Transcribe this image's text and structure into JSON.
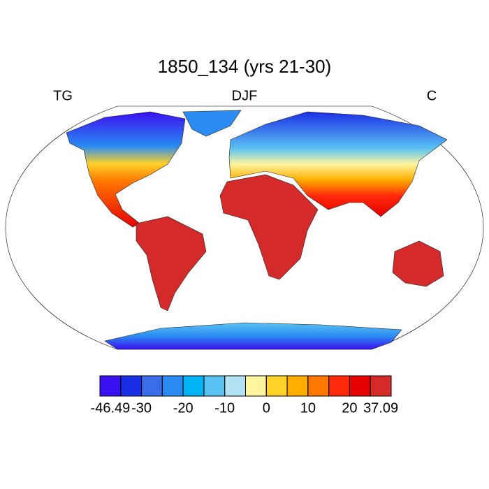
{
  "header": {
    "title": "1850_134 (yrs 21-30)",
    "left": "TG",
    "center": "DJF",
    "right": "C"
  },
  "colorbar": {
    "min": -46.49,
    "max": 37.09,
    "levels": [
      -35,
      -30,
      -25,
      -20,
      -15,
      -10,
      -5,
      0,
      5,
      10,
      15,
      20,
      25
    ],
    "colors": [
      "#3a0ff0",
      "#1a2ee6",
      "#3a6ee8",
      "#2a8cf2",
      "#00b4f5",
      "#5ac2f2",
      "#b4e2f5",
      "#fff5a0",
      "#ffd22a",
      "#ffae00",
      "#ff7800",
      "#ff2a0a",
      "#e60000",
      "#d42a2a"
    ]
  }
}
